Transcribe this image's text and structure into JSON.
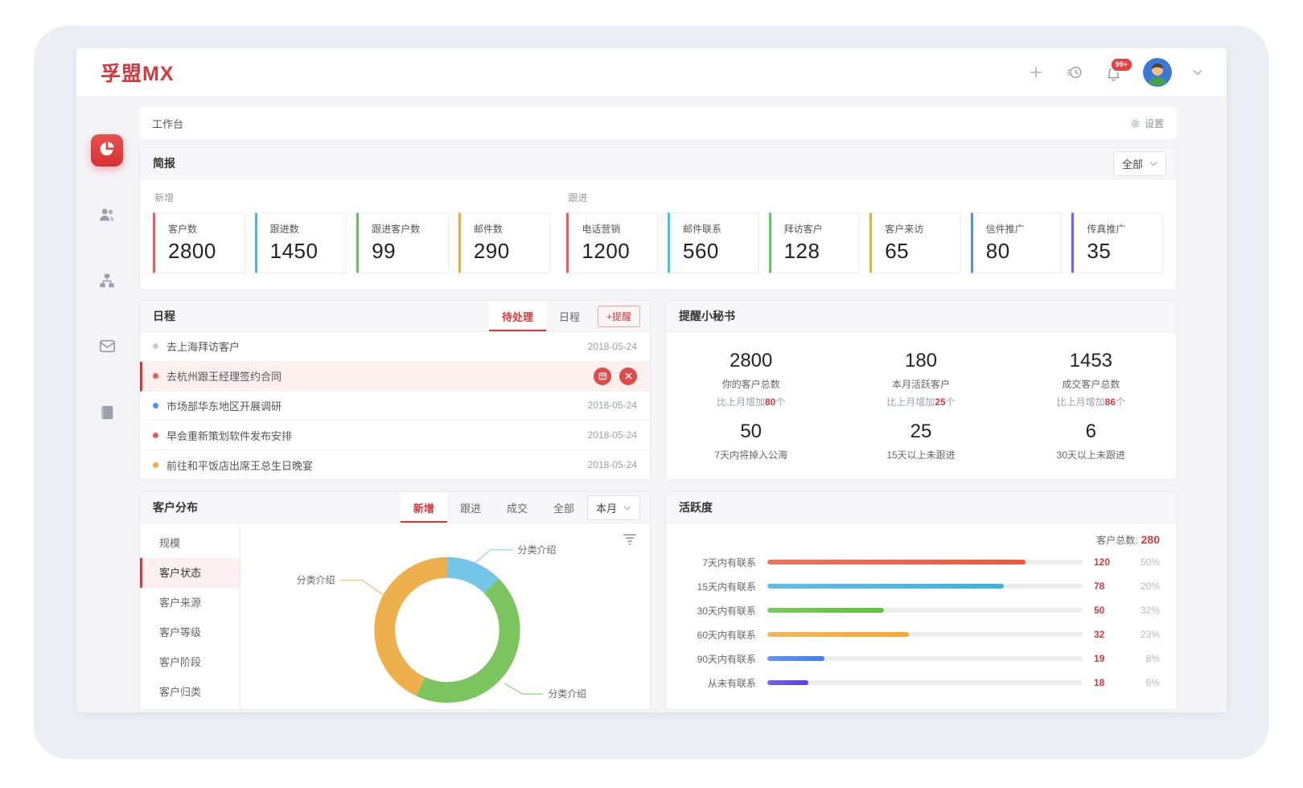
{
  "brand": {
    "logo": "孚盟MX",
    "color": "#d5393e"
  },
  "header": {
    "badge": "99+",
    "icons": [
      "add",
      "history",
      "notifications",
      "user-avatar",
      "chevron-down"
    ]
  },
  "sidebar": {
    "items": [
      {
        "icon": "pie-chart",
        "name": "dashboard",
        "active": true
      },
      {
        "icon": "users",
        "name": "customers",
        "active": false
      },
      {
        "icon": "sitemap",
        "name": "organization",
        "active": false
      },
      {
        "icon": "mail",
        "name": "mail",
        "active": false
      },
      {
        "icon": "book",
        "name": "documents",
        "active": false
      }
    ]
  },
  "workbench": {
    "title": "工作台",
    "settings_label": "设置"
  },
  "briefing": {
    "title": "简报",
    "filter_label": "全部",
    "groups": [
      {
        "label": "新增",
        "cards": [
          {
            "label": "客户数",
            "value": "2800",
            "color": "#f15b5b"
          },
          {
            "label": "跟进数",
            "value": "1450",
            "color": "#49b8f2"
          },
          {
            "label": "跟进客户数",
            "value": "99",
            "color": "#5ec75e"
          },
          {
            "label": "邮件数",
            "value": "290",
            "color": "#f2a93b"
          }
        ]
      },
      {
        "label": "跟进",
        "cards": [
          {
            "label": "电话营销",
            "value": "1200",
            "color": "#f15b5b"
          },
          {
            "label": "邮件联系",
            "value": "560",
            "color": "#3fc6d8"
          },
          {
            "label": "拜访客户",
            "value": "128",
            "color": "#5ec75e"
          },
          {
            "label": "客户来访",
            "value": "65",
            "color": "#f2a93b"
          },
          {
            "label": "信件推广",
            "value": "80",
            "color": "#4d8df7"
          },
          {
            "label": "传真推广",
            "value": "35",
            "color": "#7a5cf0"
          }
        ]
      }
    ]
  },
  "schedule": {
    "title": "日程",
    "tabs": [
      {
        "label": "待处理",
        "active": true
      },
      {
        "label": "日程",
        "active": false
      }
    ],
    "add_button": "+提醒",
    "items": [
      {
        "text": "去上海拜访客户",
        "dot_color": "#c9ccd3",
        "date": "2018-05-24",
        "highlighted": false
      },
      {
        "text": "去杭州跟王经理签约合同",
        "dot_color": "#ee5a54",
        "date": "",
        "highlighted": true
      },
      {
        "text": "市场部华东地区开展调研",
        "dot_color": "#4a90f7",
        "date": "2018-05-24",
        "highlighted": false
      },
      {
        "text": "早会重新策划软件发布安排",
        "dot_color": "#ee5a54",
        "date": "2018-05-24",
        "highlighted": false
      },
      {
        "text": "前往和平饭店出席王总生日晚宴",
        "dot_color": "#f2a93b",
        "date": "2018-05-24",
        "highlighted": false
      }
    ]
  },
  "reminder": {
    "title": "提醒小秘书",
    "stats": [
      {
        "value": "2800",
        "label": "你的客户总数",
        "note": {
          "prefix": "比上月增加",
          "num": "80",
          "suffix": "个"
        }
      },
      {
        "value": "180",
        "label": "本月活跃客户",
        "note": {
          "prefix": "比上月增加",
          "num": "25",
          "suffix": "个"
        }
      },
      {
        "value": "1453",
        "label": "成交客户总数",
        "note": {
          "prefix": "比上月增加",
          "num": "86",
          "suffix": "个"
        }
      },
      {
        "value": "50",
        "label": "7天内将掉入公海",
        "note": null
      },
      {
        "value": "25",
        "label": "15天以上未跟进",
        "note": null
      },
      {
        "value": "6",
        "label": "30天以上未跟进",
        "note": null
      }
    ]
  },
  "distribution": {
    "title": "客户分布",
    "tabs": [
      {
        "label": "新增",
        "active": true
      },
      {
        "label": "跟进",
        "active": false
      },
      {
        "label": "成交",
        "active": false
      },
      {
        "label": "全部",
        "active": false
      }
    ],
    "period_label": "本月",
    "menu": [
      {
        "label": "规模",
        "active": false
      },
      {
        "label": "客户状态",
        "active": true
      },
      {
        "label": "客户来源",
        "active": false
      },
      {
        "label": "客户等级",
        "active": false
      },
      {
        "label": "客户阶段",
        "active": false
      },
      {
        "label": "客户归类",
        "active": false
      }
    ],
    "chart_data": {
      "type": "pie",
      "donut": true,
      "start": "top",
      "direction": "clockwise",
      "labels": [
        "分类介绍",
        "分类介绍",
        "分类介绍"
      ],
      "percents": [
        12.5,
        44.5,
        43
      ],
      "colors": [
        "#74c6e9",
        "#7cc45e",
        "#eeb04d"
      ]
    }
  },
  "activity": {
    "title": "活跃度",
    "chart_data": {
      "type": "bar",
      "orientation": "horizontal",
      "total_label": "客户总数:",
      "total_value": "280",
      "categories": [
        "7天内有联系",
        "15天内有联系",
        "30天内有联系",
        "60天内有联系",
        "90天内有联系",
        "从未有联系"
      ],
      "values": [
        120,
        78,
        50,
        32,
        19,
        18
      ],
      "percent_labels": [
        "50%",
        "20%",
        "32%",
        "23%",
        "8%",
        "6%"
      ],
      "bar_fill_fraction": [
        0.82,
        0.75,
        0.37,
        0.45,
        0.18,
        0.13
      ],
      "colors": [
        "#f0563a",
        "#3eb3dc",
        "#5bc438",
        "#f6a834",
        "#3e7ef7",
        "#5b3ee8"
      ]
    }
  }
}
